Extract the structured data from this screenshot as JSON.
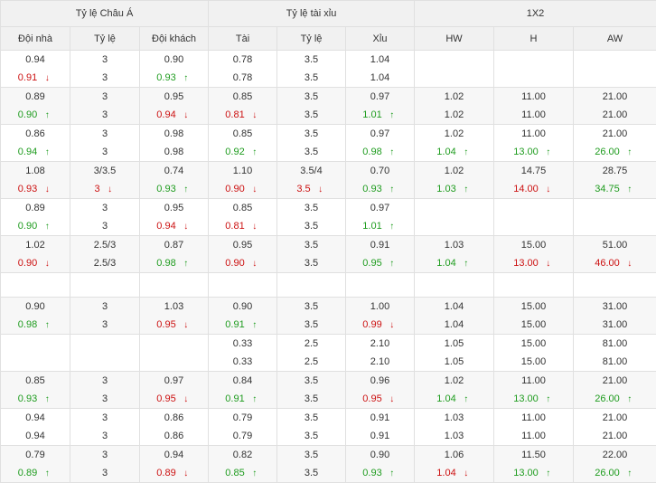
{
  "groups": [
    "Tỷ lệ Châu Á",
    "Tỷ lệ tài xỉu",
    "1X2"
  ],
  "columns": [
    "Đội nhà",
    "Tỷ lệ",
    "Đội khách",
    "Tài",
    "Tỷ lệ",
    "Xỉu",
    "HW",
    "H",
    "AW"
  ],
  "colors": {
    "up": "#1f9c1f",
    "down": "#cc1111"
  },
  "rows": [
    {
      "cells": [
        [
          {
            "v": "0.94"
          },
          {
            "v": "0.91",
            "t": "down"
          }
        ],
        [
          {
            "v": "3"
          },
          {
            "v": "3"
          }
        ],
        [
          {
            "v": "0.90"
          },
          {
            "v": "0.93",
            "t": "up"
          }
        ],
        [
          {
            "v": "0.78"
          },
          {
            "v": "0.78"
          }
        ],
        [
          {
            "v": "3.5"
          },
          {
            "v": "3.5"
          }
        ],
        [
          {
            "v": "1.04"
          },
          {
            "v": "1.04"
          }
        ],
        [],
        [],
        []
      ]
    },
    {
      "cells": [
        [
          {
            "v": "0.89"
          },
          {
            "v": "0.90",
            "t": "up"
          }
        ],
        [
          {
            "v": "3"
          },
          {
            "v": "3"
          }
        ],
        [
          {
            "v": "0.95"
          },
          {
            "v": "0.94",
            "t": "down"
          }
        ],
        [
          {
            "v": "0.85"
          },
          {
            "v": "0.81",
            "t": "down"
          }
        ],
        [
          {
            "v": "3.5"
          },
          {
            "v": "3.5"
          }
        ],
        [
          {
            "v": "0.97"
          },
          {
            "v": "1.01",
            "t": "up"
          }
        ],
        [
          {
            "v": "1.02"
          },
          {
            "v": "1.02"
          }
        ],
        [
          {
            "v": "11.00"
          },
          {
            "v": "11.00"
          }
        ],
        [
          {
            "v": "21.00"
          },
          {
            "v": "21.00"
          }
        ]
      ]
    },
    {
      "cells": [
        [
          {
            "v": "0.86"
          },
          {
            "v": "0.94",
            "t": "up"
          }
        ],
        [
          {
            "v": "3"
          },
          {
            "v": "3"
          }
        ],
        [
          {
            "v": "0.98"
          },
          {
            "v": "0.98"
          }
        ],
        [
          {
            "v": "0.85"
          },
          {
            "v": "0.92",
            "t": "up"
          }
        ],
        [
          {
            "v": "3.5"
          },
          {
            "v": "3.5"
          }
        ],
        [
          {
            "v": "0.97"
          },
          {
            "v": "0.98",
            "t": "up"
          }
        ],
        [
          {
            "v": "1.02"
          },
          {
            "v": "1.04",
            "t": "up"
          }
        ],
        [
          {
            "v": "11.00"
          },
          {
            "v": "13.00",
            "t": "up"
          }
        ],
        [
          {
            "v": "21.00"
          },
          {
            "v": "26.00",
            "t": "up"
          }
        ]
      ]
    },
    {
      "cells": [
        [
          {
            "v": "1.08"
          },
          {
            "v": "0.93",
            "t": "down"
          }
        ],
        [
          {
            "v": "3/3.5"
          },
          {
            "v": "3",
            "t": "down"
          }
        ],
        [
          {
            "v": "0.74"
          },
          {
            "v": "0.93",
            "t": "up"
          }
        ],
        [
          {
            "v": "1.10"
          },
          {
            "v": "0.90",
            "t": "down"
          }
        ],
        [
          {
            "v": "3.5/4"
          },
          {
            "v": "3.5",
            "t": "down"
          }
        ],
        [
          {
            "v": "0.70"
          },
          {
            "v": "0.93",
            "t": "up"
          }
        ],
        [
          {
            "v": "1.02"
          },
          {
            "v": "1.03",
            "t": "up"
          }
        ],
        [
          {
            "v": "14.75"
          },
          {
            "v": "14.00",
            "t": "down"
          }
        ],
        [
          {
            "v": "28.75"
          },
          {
            "v": "34.75",
            "t": "up"
          }
        ]
      ]
    },
    {
      "cells": [
        [
          {
            "v": "0.89"
          },
          {
            "v": "0.90",
            "t": "up"
          }
        ],
        [
          {
            "v": "3"
          },
          {
            "v": "3"
          }
        ],
        [
          {
            "v": "0.95"
          },
          {
            "v": "0.94",
            "t": "down"
          }
        ],
        [
          {
            "v": "0.85"
          },
          {
            "v": "0.81",
            "t": "down"
          }
        ],
        [
          {
            "v": "3.5"
          },
          {
            "v": "3.5"
          }
        ],
        [
          {
            "v": "0.97"
          },
          {
            "v": "1.01",
            "t": "up"
          }
        ],
        [],
        [],
        []
      ]
    },
    {
      "cells": [
        [
          {
            "v": "1.02"
          },
          {
            "v": "0.90",
            "t": "down"
          }
        ],
        [
          {
            "v": "2.5/3"
          },
          {
            "v": "2.5/3"
          }
        ],
        [
          {
            "v": "0.87"
          },
          {
            "v": "0.98",
            "t": "up"
          }
        ],
        [
          {
            "v": "0.95"
          },
          {
            "v": "0.90",
            "t": "down"
          }
        ],
        [
          {
            "v": "3.5"
          },
          {
            "v": "3.5"
          }
        ],
        [
          {
            "v": "0.91"
          },
          {
            "v": "0.95",
            "t": "up"
          }
        ],
        [
          {
            "v": "1.03"
          },
          {
            "v": "1.04",
            "t": "up"
          }
        ],
        [
          {
            "v": "15.00"
          },
          {
            "v": "13.00",
            "t": "down"
          }
        ],
        [
          {
            "v": "51.00"
          },
          {
            "v": "46.00",
            "t": "down"
          }
        ]
      ]
    },
    {
      "blank": true,
      "cells": [
        [],
        [],
        [],
        [],
        [],
        [],
        [],
        [],
        []
      ]
    },
    {
      "cells": [
        [
          {
            "v": "0.90"
          },
          {
            "v": "0.98",
            "t": "up"
          }
        ],
        [
          {
            "v": "3"
          },
          {
            "v": "3"
          }
        ],
        [
          {
            "v": "1.03"
          },
          {
            "v": "0.95",
            "t": "down"
          }
        ],
        [
          {
            "v": "0.90"
          },
          {
            "v": "0.91",
            "t": "up"
          }
        ],
        [
          {
            "v": "3.5"
          },
          {
            "v": "3.5"
          }
        ],
        [
          {
            "v": "1.00"
          },
          {
            "v": "0.99",
            "t": "down"
          }
        ],
        [
          {
            "v": "1.04"
          },
          {
            "v": "1.04"
          }
        ],
        [
          {
            "v": "15.00"
          },
          {
            "v": "15.00"
          }
        ],
        [
          {
            "v": "31.00"
          },
          {
            "v": "31.00"
          }
        ]
      ]
    },
    {
      "cells": [
        [],
        [],
        [],
        [
          {
            "v": "0.33"
          },
          {
            "v": "0.33"
          }
        ],
        [
          {
            "v": "2.5"
          },
          {
            "v": "2.5"
          }
        ],
        [
          {
            "v": "2.10"
          },
          {
            "v": "2.10"
          }
        ],
        [
          {
            "v": "1.05"
          },
          {
            "v": "1.05"
          }
        ],
        [
          {
            "v": "15.00"
          },
          {
            "v": "15.00"
          }
        ],
        [
          {
            "v": "81.00"
          },
          {
            "v": "81.00"
          }
        ]
      ]
    },
    {
      "cells": [
        [
          {
            "v": "0.85"
          },
          {
            "v": "0.93",
            "t": "up"
          }
        ],
        [
          {
            "v": "3"
          },
          {
            "v": "3"
          }
        ],
        [
          {
            "v": "0.97"
          },
          {
            "v": "0.95",
            "t": "down"
          }
        ],
        [
          {
            "v": "0.84"
          },
          {
            "v": "0.91",
            "t": "up"
          }
        ],
        [
          {
            "v": "3.5"
          },
          {
            "v": "3.5"
          }
        ],
        [
          {
            "v": "0.96"
          },
          {
            "v": "0.95",
            "t": "down"
          }
        ],
        [
          {
            "v": "1.02"
          },
          {
            "v": "1.04",
            "t": "up"
          }
        ],
        [
          {
            "v": "11.00"
          },
          {
            "v": "13.00",
            "t": "up"
          }
        ],
        [
          {
            "v": "21.00"
          },
          {
            "v": "26.00",
            "t": "up"
          }
        ]
      ]
    },
    {
      "cells": [
        [
          {
            "v": "0.94"
          },
          {
            "v": "0.94"
          }
        ],
        [
          {
            "v": "3"
          },
          {
            "v": "3"
          }
        ],
        [
          {
            "v": "0.86"
          },
          {
            "v": "0.86"
          }
        ],
        [
          {
            "v": "0.79"
          },
          {
            "v": "0.79"
          }
        ],
        [
          {
            "v": "3.5"
          },
          {
            "v": "3.5"
          }
        ],
        [
          {
            "v": "0.91"
          },
          {
            "v": "0.91"
          }
        ],
        [
          {
            "v": "1.03"
          },
          {
            "v": "1.03"
          }
        ],
        [
          {
            "v": "11.00"
          },
          {
            "v": "11.00"
          }
        ],
        [
          {
            "v": "21.00"
          },
          {
            "v": "21.00"
          }
        ]
      ]
    },
    {
      "cells": [
        [
          {
            "v": "0.79"
          },
          {
            "v": "0.89",
            "t": "up"
          }
        ],
        [
          {
            "v": "3"
          },
          {
            "v": "3"
          }
        ],
        [
          {
            "v": "0.94"
          },
          {
            "v": "0.89",
            "t": "down"
          }
        ],
        [
          {
            "v": "0.82"
          },
          {
            "v": "0.85",
            "t": "up"
          }
        ],
        [
          {
            "v": "3.5"
          },
          {
            "v": "3.5"
          }
        ],
        [
          {
            "v": "0.90"
          },
          {
            "v": "0.93",
            "t": "up"
          }
        ],
        [
          {
            "v": "1.06"
          },
          {
            "v": "1.04",
            "t": "down"
          }
        ],
        [
          {
            "v": "11.50"
          },
          {
            "v": "13.00",
            "t": "up"
          }
        ],
        [
          {
            "v": "22.00"
          },
          {
            "v": "26.00",
            "t": "up"
          }
        ]
      ]
    }
  ]
}
